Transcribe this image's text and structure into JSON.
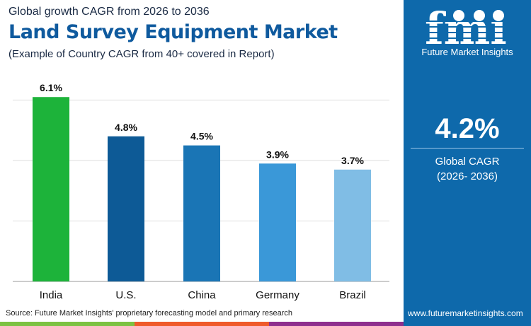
{
  "header": {
    "subtitle": "Global growth CAGR from 2026 to 2036",
    "title": "Land Survey Equipment Market",
    "note": "(Example of Country CAGR from 40+ covered in Report)"
  },
  "panel": {
    "logo_text": "fmi",
    "brand": "Future Market Insights",
    "value": "4.2%",
    "label": "Global CAGR",
    "period": "(2026- 2036)",
    "website": "www.futuremarketinsights.com",
    "bg": "#0e69ab"
  },
  "footer": {
    "source": "Source: Future Market Insights' proprietary forecasting model and primary research"
  },
  "chart_data": {
    "type": "bar",
    "categories": [
      "India",
      "U.S.",
      "China",
      "Germany",
      "Brazil"
    ],
    "values": [
      6.1,
      4.8,
      4.5,
      3.9,
      3.7
    ],
    "labels": [
      "6.1%",
      "4.8%",
      "4.5%",
      "3.9%",
      "3.7%"
    ],
    "colors": [
      "#1db33a",
      "#0d5a96",
      "#1a75b5",
      "#3a98d8",
      "#80bde5"
    ],
    "ylim": [
      0,
      6
    ],
    "gridlines": [
      2,
      4,
      6
    ],
    "grid": true,
    "unit": "%"
  }
}
